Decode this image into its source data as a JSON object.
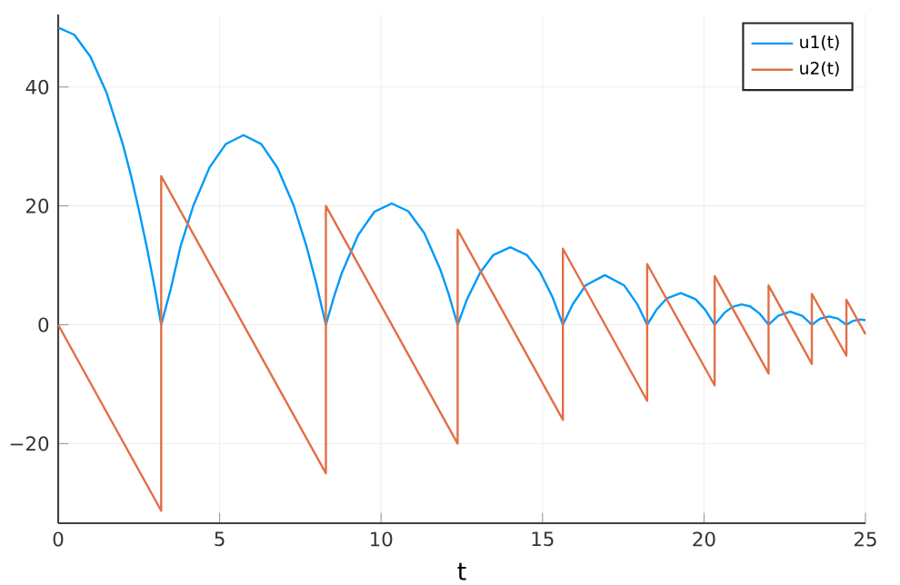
{
  "chart_data": {
    "type": "line",
    "xlabel": "t",
    "xlim": [
      0,
      25
    ],
    "ylim": [
      -33.4,
      52.2
    ],
    "xticks": [
      0,
      5,
      10,
      15,
      20,
      25
    ],
    "yticks": [
      {
        "value": -20,
        "label": "−20"
      },
      0,
      20,
      40
    ],
    "grid": true,
    "legend": "top right",
    "series": [
      {
        "name": "u1(t)",
        "color": "#009af9",
        "x": [
          0,
          0.5,
          1,
          1.5,
          2,
          2.25,
          2.5,
          2.75,
          3,
          3.19,
          3.49,
          3.79,
          4.19,
          4.69,
          5.19,
          5.74,
          6.29,
          6.79,
          7.29,
          7.69,
          7.99,
          8.29,
          8.54,
          8.79,
          9.29,
          9.79,
          10.33,
          10.84,
          11.34,
          11.84,
          12.09,
          12.37,
          12.67,
          13.07,
          13.47,
          14.0,
          14.52,
          14.92,
          15.32,
          15.63,
          15.93,
          16.33,
          16.93,
          17.53,
          17.93,
          18.24,
          18.54,
          18.84,
          19.28,
          19.74,
          20.04,
          20.33,
          20.63,
          20.88,
          21.16,
          21.43,
          21.73,
          22.0,
          22.3,
          22.67,
          23.04,
          23.34,
          23.6,
          23.87,
          24.14,
          24.41,
          24.6,
          24.84,
          25
        ],
        "values": [
          50,
          48.8,
          45.1,
          39,
          30.4,
          25.2,
          19.3,
          12.9,
          5.9,
          0,
          6.1,
          13.2,
          20.1,
          26.5,
          30.4,
          31.9,
          30.4,
          26.4,
          20.1,
          13.2,
          7.0,
          0,
          4.7,
          8.8,
          15.1,
          19.0,
          20.4,
          19.1,
          15.4,
          9.2,
          5.2,
          0,
          4.4,
          8.8,
          11.7,
          13.05,
          11.7,
          8.9,
          4.5,
          0,
          3.4,
          6.6,
          8.35,
          6.6,
          3.5,
          0,
          2.6,
          4.4,
          5.34,
          4.3,
          2.5,
          0,
          2.0,
          3.0,
          3.42,
          3.1,
          1.85,
          0,
          1.5,
          2.19,
          1.5,
          0,
          1.03,
          1.4,
          1.05,
          0,
          0.62,
          0.89,
          0.76
        ]
      },
      {
        "name": "u2(t)",
        "color": "#e26f46",
        "x": [
          0,
          3.19,
          3.19,
          8.29,
          8.29,
          12.37,
          12.37,
          15.63,
          15.63,
          18.24,
          18.24,
          20.33,
          20.33,
          22.0,
          22.0,
          23.34,
          23.34,
          24.41,
          24.41,
          25
        ],
        "values": [
          0,
          -31.3,
          25,
          -25,
          20,
          -20,
          16,
          -16,
          12.8,
          -12.8,
          10.2,
          -10.2,
          8.2,
          -8.2,
          6.6,
          -6.6,
          5.2,
          -5.2,
          4.2,
          -1.6
        ]
      }
    ]
  }
}
